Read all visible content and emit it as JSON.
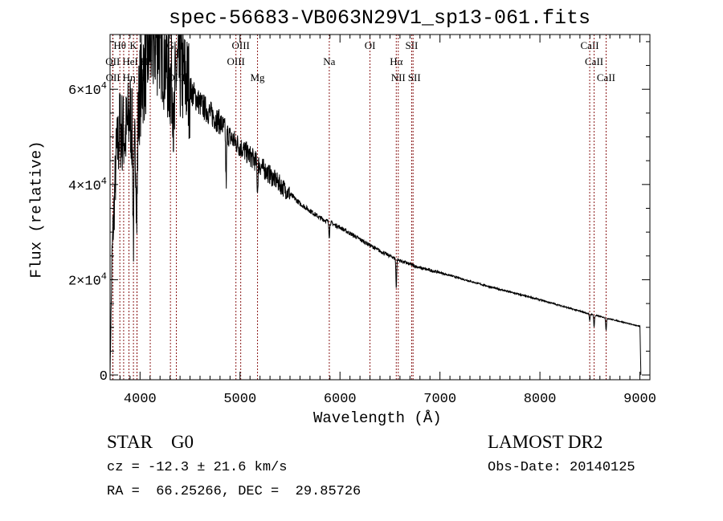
{
  "chart_data": {
    "type": "line",
    "title": "spec-56683-VB063N29V1_sp13-061.fits",
    "xlabel": "Wavelength (Å)",
    "ylabel": "Flux (relative)",
    "xlim": [
      3700,
      9100
    ],
    "ylim": [
      -1000,
      71500
    ],
    "xticks": [
      4000,
      5000,
      6000,
      7000,
      8000,
      9000
    ],
    "xtick_labels": [
      "4000",
      "5000",
      "6000",
      "7000",
      "8000",
      "9000"
    ],
    "yticks": [
      0,
      20000,
      40000,
      60000
    ],
    "ytick_labels": [
      {
        "m": "0",
        "e": ""
      },
      {
        "m": "2×10",
        "e": "4"
      },
      {
        "m": "4×10",
        "e": "4"
      },
      {
        "m": "6×10",
        "e": "4"
      }
    ],
    "series": [
      {
        "name": "flux",
        "x": [
          3700,
          3720,
          3760,
          3800,
          3850,
          3900,
          3950,
          4000,
          4100,
          4200,
          4300,
          4400,
          4500,
          4600,
          4700,
          4800,
          4900,
          5000,
          5200,
          5400,
          5600,
          5800,
          6000,
          6200,
          6400,
          6600,
          6800,
          7000,
          7500,
          8000,
          8500,
          9000,
          9010
        ],
        "y": [
          0,
          25000,
          45000,
          52000,
          50000,
          55000,
          48000,
          60000,
          70000,
          71000,
          62000,
          64000,
          60000,
          57000,
          55000,
          53000,
          50000,
          48000,
          44000,
          40000,
          36000,
          33000,
          31000,
          28500,
          26000,
          24000,
          22500,
          21500,
          18500,
          15800,
          12800,
          10200,
          0
        ]
      }
    ],
    "absorption": [
      {
        "w": 4861,
        "d": 11000
      },
      {
        "w": 5175,
        "d": 6000
      },
      {
        "w": 4340,
        "d": 14000
      },
      {
        "w": 3934,
        "d": 20000
      },
      {
        "w": 3969,
        "d": 18000
      },
      {
        "w": 5893,
        "d": 3000
      },
      {
        "w": 6563,
        "d": 6000
      },
      {
        "w": 8498,
        "d": 1500
      },
      {
        "w": 8542,
        "d": 2500
      },
      {
        "w": 8662,
        "d": 2500
      }
    ],
    "lines": [
      {
        "label": "Hθ",
        "w": 3798,
        "row": 0
      },
      {
        "label": "K",
        "w": 3934,
        "row": 0
      },
      {
        "label": "G",
        "w": 4304,
        "row": 0
      },
      {
        "label": "OIII",
        "w": 5007,
        "row": 0
      },
      {
        "label": "OI",
        "w": 6300,
        "row": 0
      },
      {
        "label": "SII",
        "w": 6717,
        "row": 0
      },
      {
        "label": "CaII",
        "w": 8498,
        "row": 0
      },
      {
        "label": "OII",
        "w": 3727,
        "row": 1
      },
      {
        "label": "HeI",
        "w": 3889,
        "row": 1
      },
      {
        "label": "Hε",
        "w": 3970,
        "row": 1
      },
      {
        "label": "OIII",
        "w": 4959,
        "row": 1
      },
      {
        "label": "Na",
        "w": 5893,
        "row": 1
      },
      {
        "label": "Hα",
        "w": 6563,
        "row": 1
      },
      {
        "label": "CaII",
        "w": 8542,
        "row": 1
      },
      {
        "label": "OII",
        "w": 3729,
        "row": 2
      },
      {
        "label": "Hη",
        "w": 3836,
        "row": 2
      },
      {
        "label": "H",
        "w": 3969,
        "row": 2
      },
      {
        "label": "OIII",
        "w": 4363,
        "row": 2
      },
      {
        "label": "Mg",
        "w": 5175,
        "row": 2
      },
      {
        "label": "NII",
        "w": 6583,
        "row": 2
      },
      {
        "label": "SII",
        "w": 6731,
        "row": 2
      },
      {
        "label": "CaII",
        "w": 8662,
        "row": 2
      },
      {
        "label": "",
        "w": 4102,
        "row": -1
      }
    ]
  },
  "info": {
    "class": "STAR    G0",
    "cz": "cz = -12.3 ± 21.6 km/s",
    "coords": "RA =  66.25266, DEC =  29.85726",
    "survey": "LAMOST DR2",
    "obsdate": "Obs-Date: 20140125"
  }
}
